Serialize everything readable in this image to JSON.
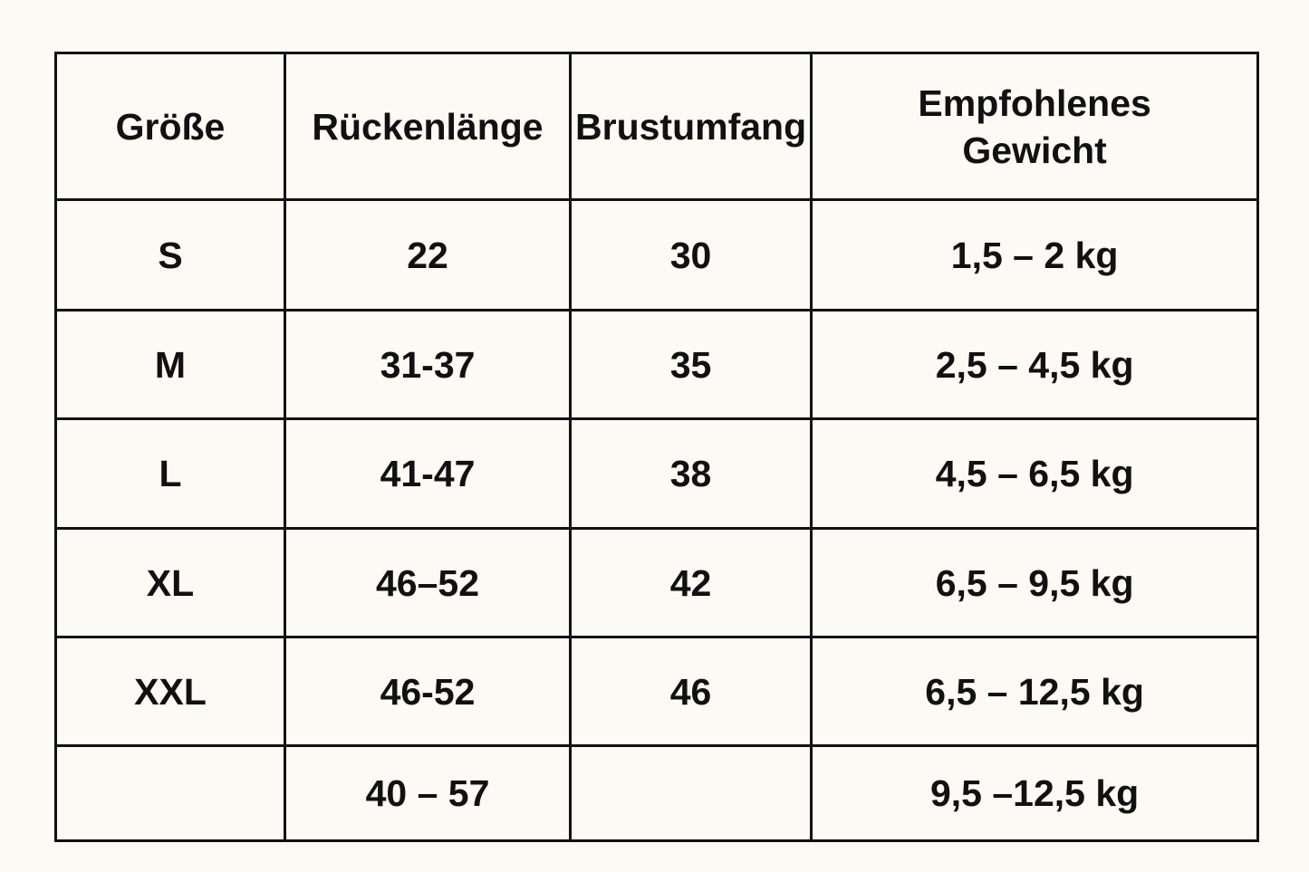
{
  "table": {
    "header": [
      "Größe",
      "Rückenlänge",
      "Brustumfang",
      "Empfohlenes Gewicht"
    ],
    "rows": [
      [
        "S",
        "22",
        "30",
        "1,5 – 2 kg"
      ],
      [
        "M",
        "31-37",
        "35",
        "2,5 – 4,5 kg"
      ],
      [
        "L",
        "41-47",
        "38",
        "4,5 – 6,5 kg"
      ],
      [
        "XL",
        "46–52",
        "42",
        "6,5 – 9,5 kg"
      ],
      [
        "XXL",
        "46-52",
        "46",
        "6,5 – 12,5 kg"
      ],
      [
        null,
        "40 – 57",
        null,
        "9,5 –12,5 kg"
      ]
    ]
  }
}
